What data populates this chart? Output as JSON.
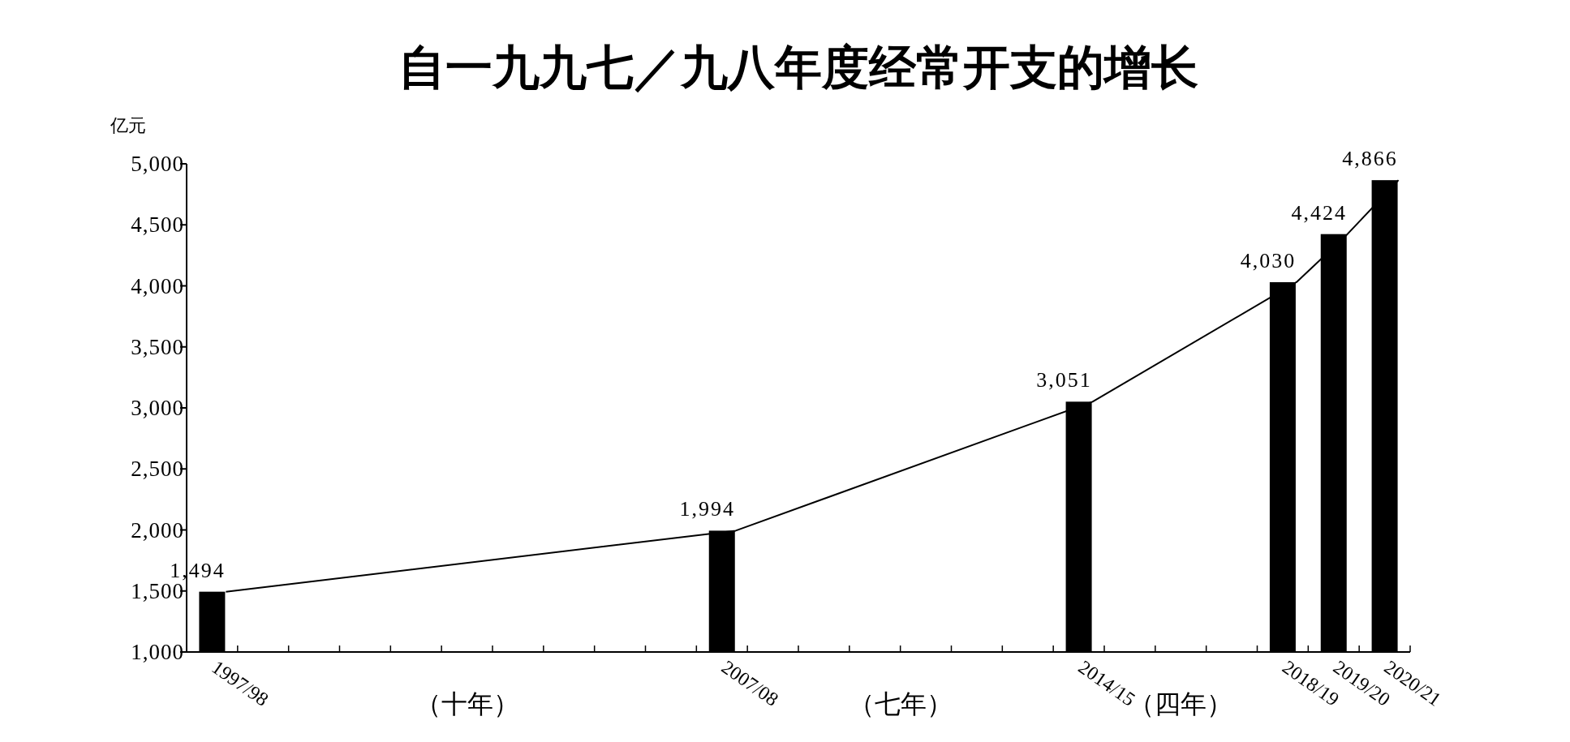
{
  "chart_data": {
    "type": "bar",
    "title": "自一九九七／九八年度经常开支的增长",
    "ylabel": "亿元",
    "categories": [
      "1997/98",
      null,
      null,
      null,
      null,
      null,
      null,
      null,
      null,
      null,
      "2007/08",
      null,
      null,
      null,
      null,
      null,
      null,
      "2014/15",
      null,
      null,
      null,
      "2018/19",
      "2019/20",
      "2020/21"
    ],
    "series": [
      {
        "color": "#000000",
        "values": [
          1494,
          null,
          null,
          null,
          null,
          null,
          null,
          null,
          null,
          null,
          1994,
          null,
          null,
          null,
          null,
          null,
          null,
          3051,
          null,
          null,
          null,
          4030,
          4424,
          4866
        ],
        "value_labels": [
          "1,494",
          null,
          null,
          null,
          null,
          null,
          null,
          null,
          null,
          null,
          "1,994",
          null,
          null,
          null,
          null,
          null,
          null,
          "3,051",
          null,
          null,
          null,
          "4,030",
          "4,424",
          "4,866"
        ]
      },
      {
        "type": "line",
        "color": "#000000",
        "values": [
          1494,
          null,
          null,
          null,
          null,
          null,
          null,
          null,
          null,
          null,
          1994,
          null,
          null,
          null,
          null,
          null,
          null,
          3051,
          null,
          null,
          null,
          4030,
          4424,
          4866
        ]
      }
    ],
    "marker": "none",
    "line_style": "solid",
    "ylim": [
      1000,
      5000
    ],
    "yticks": [
      {
        "value": 1000,
        "label": "1,000"
      },
      {
        "value": 1500,
        "label": "1,500"
      },
      {
        "value": 2000,
        "label": "2,000"
      },
      {
        "value": 2500,
        "label": "2,500"
      },
      {
        "value": 3000,
        "label": "3,000"
      },
      {
        "value": 3500,
        "label": "3,500"
      },
      {
        "value": 4000,
        "label": "4,000"
      },
      {
        "value": 4500,
        "label": "4,500"
      },
      {
        "value": 5000,
        "label": "5,000"
      }
    ],
    "grid": false,
    "annotations": [
      "（十年）",
      "（七年）",
      "（四年）"
    ]
  }
}
